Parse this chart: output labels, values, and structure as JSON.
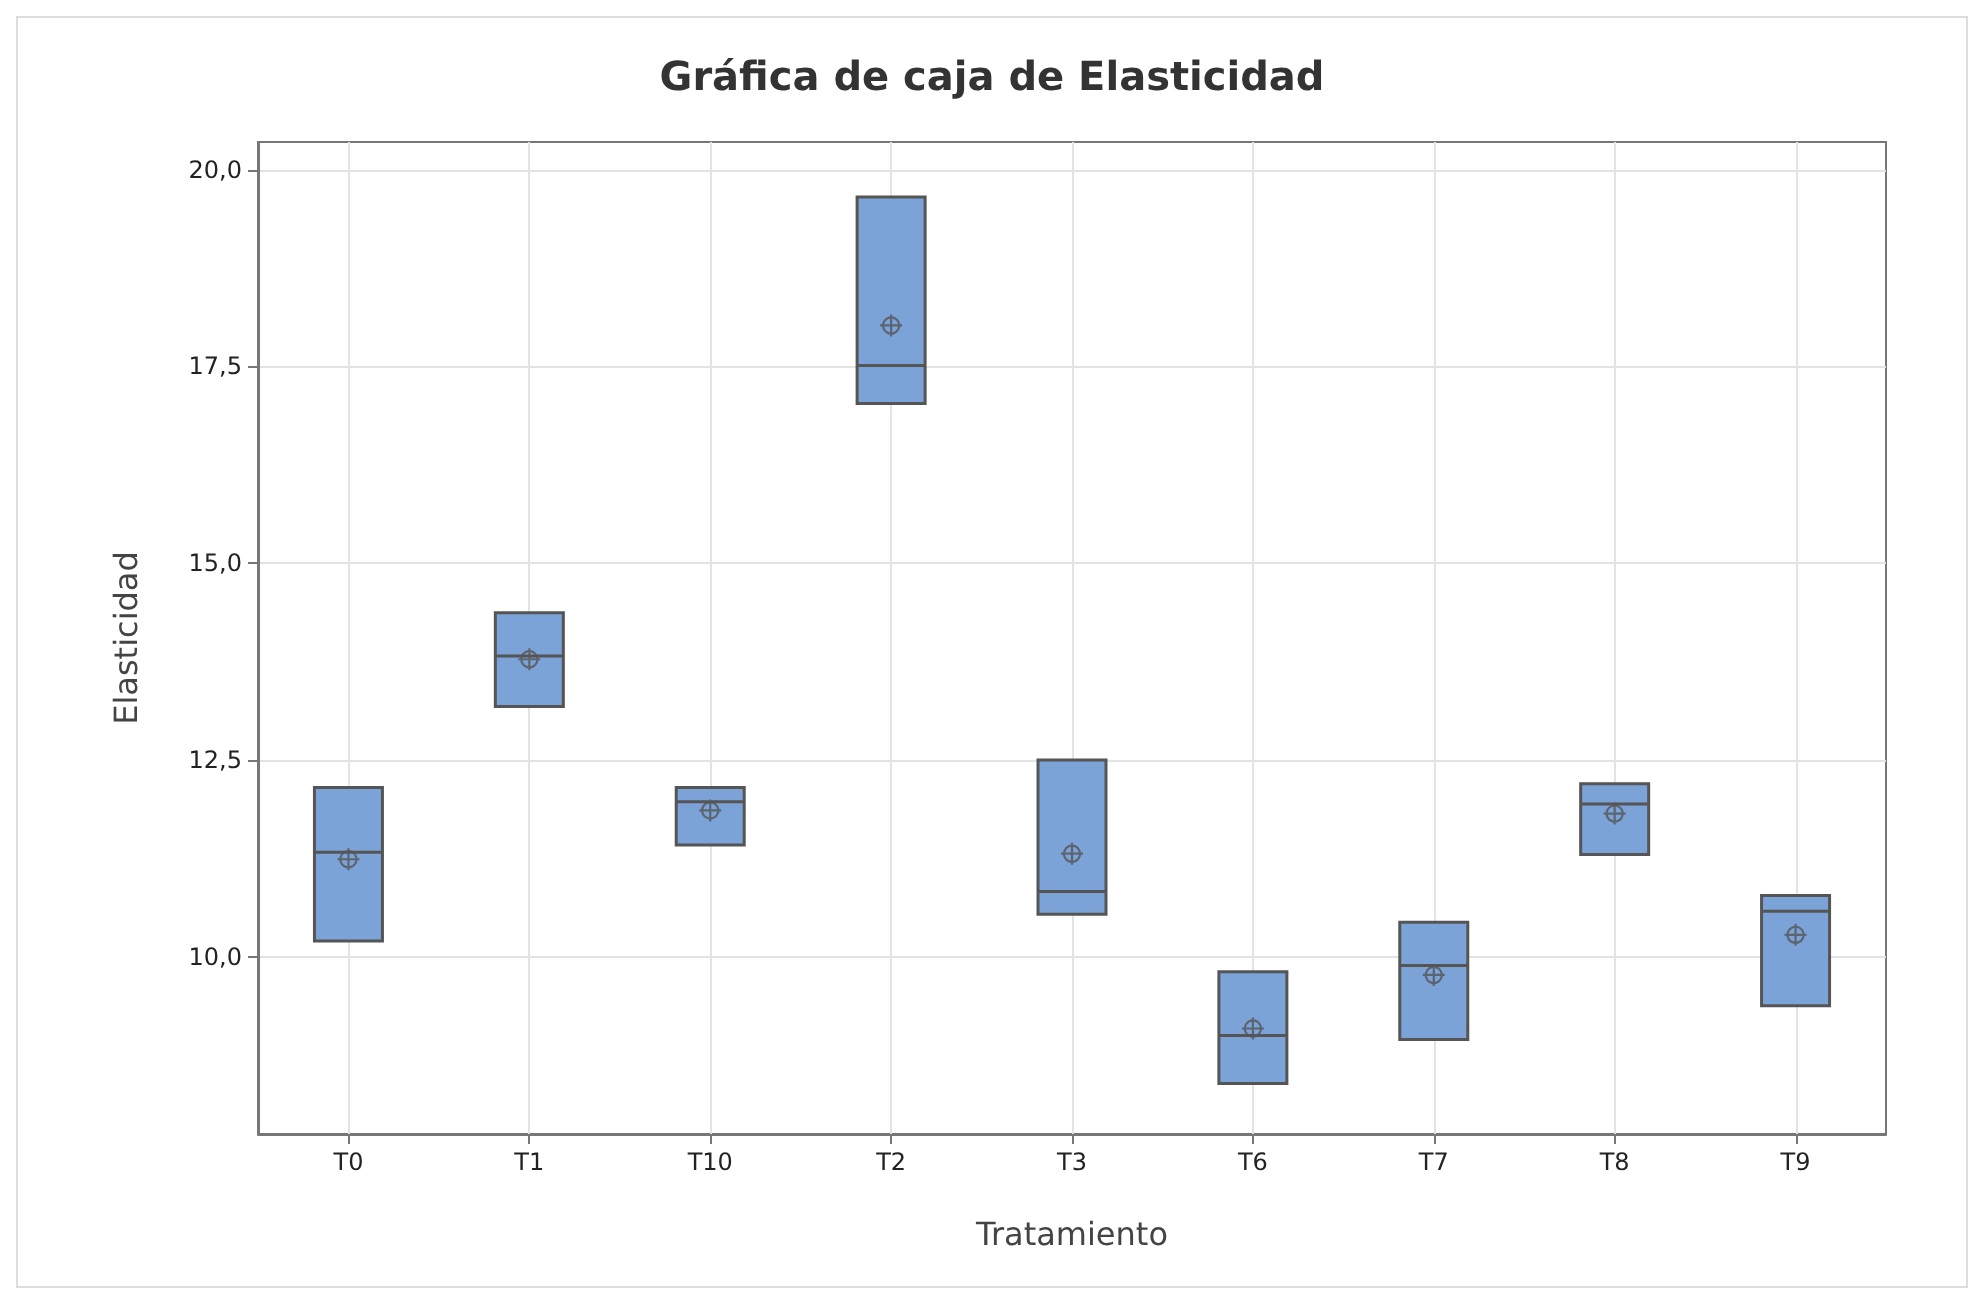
{
  "chart_data": {
    "type": "box",
    "title": "Gráfica de caja de Elasticidad",
    "xlabel": "Tratamiento",
    "ylabel": "Elasticidad",
    "categories": [
      "T0",
      "T1",
      "T10",
      "T2",
      "T3",
      "T6",
      "T7",
      "T8",
      "T9"
    ],
    "color": "#7ba3d8",
    "boxes": [
      {
        "low": 10.2,
        "q1": 10.2,
        "median": 11.33,
        "q3": 12.15,
        "high": 12.15,
        "mean": 11.24
      },
      {
        "low": 13.18,
        "q1": 13.18,
        "median": 13.82,
        "q3": 14.37,
        "high": 14.37,
        "mean": 13.78
      },
      {
        "low": 11.42,
        "q1": 11.42,
        "median": 11.97,
        "q3": 12.15,
        "high": 12.15,
        "mean": 11.86
      },
      {
        "low": 17.03,
        "q1": 17.03,
        "median": 17.51,
        "q3": 19.65,
        "high": 19.65,
        "mean": 18.02
      },
      {
        "low": 10.54,
        "q1": 10.54,
        "median": 10.83,
        "q3": 12.5,
        "high": 12.5,
        "mean": 11.31
      },
      {
        "low": 8.39,
        "q1": 8.39,
        "median": 9.0,
        "q3": 9.81,
        "high": 9.81,
        "mean": 9.09
      },
      {
        "low": 8.95,
        "q1": 8.95,
        "median": 9.89,
        "q3": 10.44,
        "high": 10.44,
        "mean": 9.77
      },
      {
        "low": 11.3,
        "q1": 11.3,
        "median": 11.94,
        "q3": 12.2,
        "high": 12.2,
        "mean": 11.82
      },
      {
        "low": 9.38,
        "q1": 9.38,
        "median": 10.58,
        "q3": 10.78,
        "high": 10.78,
        "mean": 10.28
      }
    ],
    "ylim": [
      7.75,
      20.35
    ],
    "yticks": [
      {
        "value": 10,
        "label": "10,0"
      },
      {
        "value": 12.5,
        "label": "12,5"
      },
      {
        "value": 15,
        "label": "15,0"
      },
      {
        "value": 17.5,
        "label": "17,5"
      },
      {
        "value": 20,
        "label": "20,0"
      }
    ],
    "grid": true
  }
}
